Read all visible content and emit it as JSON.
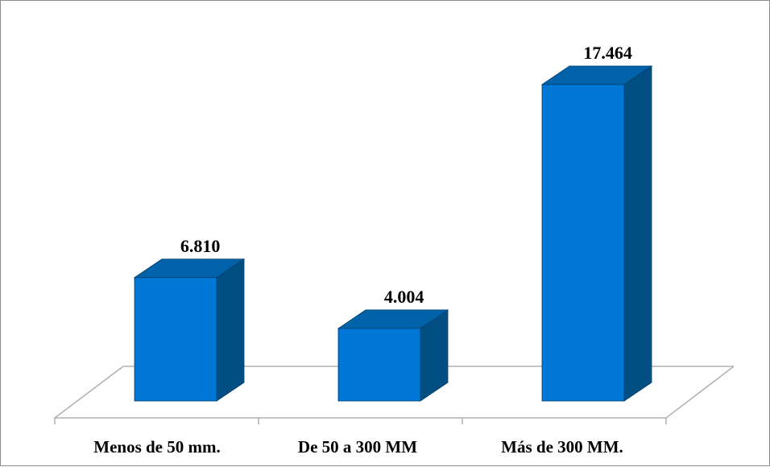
{
  "chart_data": {
    "type": "bar",
    "style": "3d-column",
    "categories": [
      "Menos de 50 mm.",
      "De 50 a 300 MM",
      "Más de 300 MM."
    ],
    "values": [
      6810,
      4004,
      17464
    ],
    "value_labels": [
      "6.810",
      "4.004",
      "17.464"
    ],
    "ylim": [
      0,
      17464
    ],
    "grid": false,
    "legend": "none",
    "colors": {
      "front": "#0077D6",
      "top": "#0062A8",
      "side": "#004E82",
      "edge": "#003F6B",
      "floor_line": "#B0B0B0",
      "frame": "#8C8C8C"
    }
  }
}
